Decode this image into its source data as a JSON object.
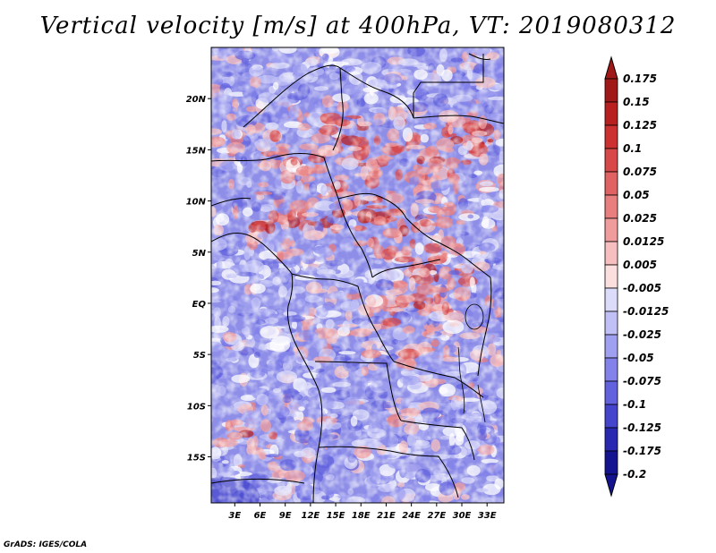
{
  "chart_data": {
    "type": "heatmap",
    "title": "Vertical velocity [m/s] at 400hPa, VT: 2019080312",
    "x_ticks": [
      "3E",
      "6E",
      "9E",
      "12E",
      "15E",
      "18E",
      "21E",
      "24E",
      "27E",
      "30E",
      "33E"
    ],
    "x_values": [
      3,
      6,
      9,
      12,
      15,
      18,
      21,
      24,
      27,
      30,
      33
    ],
    "y_ticks": [
      "20N",
      "15N",
      "10N",
      "5N",
      "EQ",
      "5S",
      "10S",
      "15S"
    ],
    "y_values": [
      20,
      15,
      10,
      5,
      0,
      -5,
      -10,
      -15
    ],
    "xlim": [
      0.2,
      35
    ],
    "ylim": [
      -19.5,
      25
    ],
    "legend": {
      "placement": "right",
      "levels": [
        "0.175",
        "0.15",
        "0.125",
        "0.1",
        "0.075",
        "0.05",
        "0.025",
        "0.0125",
        "0.005",
        "-0.005",
        "-0.0125",
        "-0.025",
        "-0.05",
        "-0.075",
        "-0.1",
        "-0.125",
        "-0.175",
        "-0.2"
      ],
      "colors": [
        "#a01818",
        "#b82020",
        "#cc3030",
        "#d84848",
        "#e06262",
        "#e87e7e",
        "#f09c9c",
        "#f6bebe",
        "#fbdede",
        "#ffffff",
        "#dcdcfa",
        "#c0c0f6",
        "#a0a0f0",
        "#8282ea",
        "#6262de",
        "#4444cc",
        "#2828b0",
        "#141490"
      ]
    },
    "credit": "GrADS: IGES/COLA"
  }
}
